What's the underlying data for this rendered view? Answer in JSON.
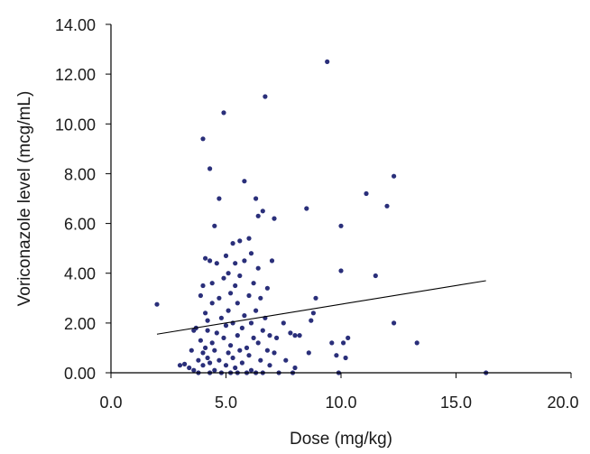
{
  "chart_data": {
    "type": "scatter",
    "title": "",
    "xlabel": "Dose (mg/kg)",
    "ylabel": "Voriconazole level (mcg/mL)",
    "xlim": [
      0,
      20
    ],
    "ylim": [
      0,
      14
    ],
    "x_ticks": [
      "0.0",
      "5.0",
      "10.0",
      "15.0",
      "20.0"
    ],
    "y_ticks": [
      "0.00",
      "2.00",
      "4.00",
      "6.00",
      "8.00",
      "10.00",
      "12.00",
      "14.00"
    ],
    "grid": false,
    "legend": "none",
    "colors": {
      "points": "#2a2f7a",
      "trendline": "#000000",
      "axis": "#000000"
    },
    "series": [
      {
        "points": [
          [
            2.0,
            2.75
          ],
          [
            3.0,
            0.3
          ],
          [
            3.2,
            0.35
          ],
          [
            3.4,
            0.2
          ],
          [
            3.5,
            0.9
          ],
          [
            3.6,
            1.7
          ],
          [
            3.6,
            0.1
          ],
          [
            3.7,
            1.8
          ],
          [
            3.8,
            0.5
          ],
          [
            3.8,
            0.0
          ],
          [
            3.9,
            1.3
          ],
          [
            3.9,
            3.1
          ],
          [
            4.0,
            0.8
          ],
          [
            4.0,
            3.5
          ],
          [
            4.0,
            0.3
          ],
          [
            4.0,
            9.4
          ],
          [
            4.1,
            4.6
          ],
          [
            4.1,
            2.4
          ],
          [
            4.1,
            1.0
          ],
          [
            4.2,
            0.6
          ],
          [
            4.2,
            2.1
          ],
          [
            4.2,
            1.7
          ],
          [
            4.3,
            0.0
          ],
          [
            4.3,
            4.5
          ],
          [
            4.3,
            8.2
          ],
          [
            4.3,
            0.4
          ],
          [
            4.4,
            3.6
          ],
          [
            4.4,
            1.2
          ],
          [
            4.4,
            2.8
          ],
          [
            4.5,
            5.9
          ],
          [
            4.5,
            0.9
          ],
          [
            4.5,
            0.1
          ],
          [
            4.6,
            4.4
          ],
          [
            4.6,
            1.6
          ],
          [
            4.7,
            7.0
          ],
          [
            4.7,
            3.0
          ],
          [
            4.7,
            0.5
          ],
          [
            4.8,
            0.0
          ],
          [
            4.8,
            2.2
          ],
          [
            4.9,
            10.45
          ],
          [
            4.9,
            1.4
          ],
          [
            4.9,
            3.8
          ],
          [
            5.0,
            4.7
          ],
          [
            5.0,
            0.3
          ],
          [
            5.0,
            1.9
          ],
          [
            5.1,
            0.8
          ],
          [
            5.1,
            2.5
          ],
          [
            5.1,
            4.0
          ],
          [
            5.2,
            0.0
          ],
          [
            5.2,
            3.2
          ],
          [
            5.2,
            1.1
          ],
          [
            5.3,
            5.2
          ],
          [
            5.3,
            0.6
          ],
          [
            5.3,
            2.0
          ],
          [
            5.4,
            3.5
          ],
          [
            5.4,
            0.2
          ],
          [
            5.4,
            4.4
          ],
          [
            5.5,
            1.5
          ],
          [
            5.5,
            0.0
          ],
          [
            5.5,
            2.8
          ],
          [
            5.6,
            5.3
          ],
          [
            5.6,
            0.9
          ],
          [
            5.6,
            3.9
          ],
          [
            5.7,
            1.8
          ],
          [
            5.7,
            0.4
          ],
          [
            5.8,
            7.7
          ],
          [
            5.8,
            2.3
          ],
          [
            5.8,
            4.5
          ],
          [
            5.9,
            1.0
          ],
          [
            5.9,
            0.0
          ],
          [
            6.0,
            3.1
          ],
          [
            6.0,
            5.4
          ],
          [
            6.0,
            0.7
          ],
          [
            6.1,
            2.0
          ],
          [
            6.1,
            4.8
          ],
          [
            6.1,
            0.1
          ],
          [
            6.2,
            1.4
          ],
          [
            6.2,
            3.6
          ],
          [
            6.3,
            7.0
          ],
          [
            6.3,
            0.0
          ],
          [
            6.3,
            2.5
          ],
          [
            6.4,
            6.3
          ],
          [
            6.4,
            1.2
          ],
          [
            6.4,
            4.2
          ],
          [
            6.5,
            0.5
          ],
          [
            6.5,
            3.0
          ],
          [
            6.6,
            6.5
          ],
          [
            6.6,
            1.7
          ],
          [
            6.6,
            0.0
          ],
          [
            6.7,
            11.1
          ],
          [
            6.7,
            2.2
          ],
          [
            6.8,
            0.9
          ],
          [
            6.8,
            3.4
          ],
          [
            6.9,
            1.5
          ],
          [
            6.9,
            0.3
          ],
          [
            7.0,
            4.5
          ],
          [
            7.1,
            6.2
          ],
          [
            7.1,
            0.8
          ],
          [
            7.2,
            1.4
          ],
          [
            7.3,
            0.0
          ],
          [
            7.5,
            2.0
          ],
          [
            7.6,
            0.5
          ],
          [
            7.8,
            1.6
          ],
          [
            7.9,
            0.0
          ],
          [
            8.0,
            0.2
          ],
          [
            8.0,
            1.5
          ],
          [
            8.2,
            1.5
          ],
          [
            8.5,
            6.6
          ],
          [
            8.6,
            0.8
          ],
          [
            8.7,
            2.1
          ],
          [
            8.8,
            2.4
          ],
          [
            8.9,
            3.0
          ],
          [
            9.4,
            12.5
          ],
          [
            9.6,
            1.2
          ],
          [
            9.8,
            0.7
          ],
          [
            9.9,
            0.0
          ],
          [
            10.0,
            5.9
          ],
          [
            10.0,
            4.1
          ],
          [
            10.1,
            1.2
          ],
          [
            10.2,
            0.6
          ],
          [
            10.3,
            1.4
          ],
          [
            11.1,
            7.2
          ],
          [
            11.5,
            3.9
          ],
          [
            12.0,
            6.7
          ],
          [
            12.3,
            7.9
          ],
          [
            12.3,
            2.0
          ],
          [
            13.3,
            1.2
          ],
          [
            16.3,
            0.0
          ]
        ]
      }
    ],
    "trendline": {
      "x": [
        2.0,
        16.3
      ],
      "y": [
        1.55,
        3.7
      ]
    }
  }
}
